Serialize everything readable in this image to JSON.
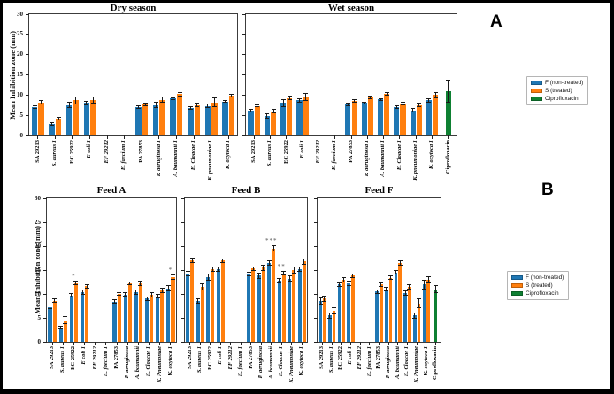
{
  "figure": {
    "panel_a_label": "A",
    "panel_b_label": "B",
    "ylabel": "Mean Inhibition zone (mm)",
    "colors": {
      "f_bar": "#1f77b4",
      "s_bar": "#ff7f0e",
      "cipro_bar": "#0e8032",
      "error_bar": "#1a1a1a"
    },
    "legend": {
      "items": [
        {
          "label": "F (non-treated)",
          "color": "#1f77b4"
        },
        {
          "label": "S (treated)",
          "color": "#ff7f0e"
        },
        {
          "label": "Ciprofloxacin",
          "color": "#0e8032"
        }
      ]
    }
  },
  "chart_data": [
    {
      "type": "bar",
      "panel": "A",
      "title": "Dry season",
      "ylabel": "Mean Inhibition zone (mm)",
      "ylim": [
        0,
        30
      ],
      "yticks": [
        0,
        5,
        10,
        15,
        20,
        25,
        30
      ],
      "show_ytick_labels": true,
      "grid": false,
      "categories": [
        {
          "label": "SA 29213",
          "italic": false
        },
        {
          "label": "S. aureus 1",
          "italic": true
        },
        {
          "label": "EC 25922",
          "italic": false
        },
        {
          "label": "E coli 1",
          "italic": true
        },
        {
          "label": "EF 29212",
          "italic": true
        },
        {
          "label": "E. faecium 1",
          "italic": true
        },
        {
          "label": "PA 27853",
          "italic": false
        },
        {
          "label": "P. aeruginosa 1",
          "italic": true
        },
        {
          "label": "A. baumannii 1",
          "italic": true
        },
        {
          "label": "E. Cloacae 1",
          "italic": true
        },
        {
          "label": "K. pneumoniae 1",
          "italic": true
        },
        {
          "label": "K. oxytoca 1",
          "italic": true
        }
      ],
      "series": [
        {
          "name": "F (non-treated)",
          "color": "#1f77b4",
          "values": [
            7.0,
            2.8,
            7.5,
            8.0,
            0,
            0,
            7.0,
            7.5,
            9.1,
            6.8,
            7.3,
            8.4
          ],
          "errors": [
            0.4,
            0.4,
            0.8,
            0.6,
            0,
            0,
            0.5,
            0.8,
            0.4,
            0.5,
            0.5,
            0.4
          ]
        },
        {
          "name": "S (treated)",
          "color": "#ff7f0e",
          "values": [
            8.2,
            4.2,
            8.7,
            8.8,
            0,
            0,
            7.6,
            8.8,
            10.2,
            7.5,
            8.2,
            9.9
          ],
          "errors": [
            0.5,
            0.4,
            1.0,
            0.9,
            0,
            0,
            0.4,
            0.8,
            0.5,
            0.5,
            1.2,
            0.5
          ]
        }
      ],
      "annotations": []
    },
    {
      "type": "bar",
      "panel": "A",
      "title": "Wet season",
      "ylabel": null,
      "ylim": [
        0,
        30
      ],
      "yticks": [
        0,
        5,
        10,
        15,
        20,
        25,
        30
      ],
      "show_ytick_labels": false,
      "grid": false,
      "categories": [
        {
          "label": "SA 29213",
          "italic": false
        },
        {
          "label": "S. aureus 1",
          "italic": true
        },
        {
          "label": "EC 25922",
          "italic": false
        },
        {
          "label": "E coli 1",
          "italic": true
        },
        {
          "label": "EF 29212",
          "italic": true
        },
        {
          "label": "E. faecium 1",
          "italic": true
        },
        {
          "label": "PA 27853",
          "italic": false
        },
        {
          "label": "P. aeruginosa 1",
          "italic": true
        },
        {
          "label": "A. baumannii 1",
          "italic": true
        },
        {
          "label": "E. Cloacae 1",
          "italic": true
        },
        {
          "label": "K. pneumoniae 1",
          "italic": true
        },
        {
          "label": "K. oxytoca 1",
          "italic": true
        },
        {
          "label": "Ciprofloxacin",
          "italic": false
        }
      ],
      "series": [
        {
          "name": "F (non-treated)",
          "color": "#1f77b4",
          "values": [
            6.2,
            4.8,
            8.0,
            8.7,
            0,
            0,
            7.6,
            8.0,
            8.9,
            7.0,
            6.2,
            8.7,
            null
          ],
          "errors": [
            0.4,
            0.7,
            1.0,
            0.5,
            0,
            0,
            0.4,
            0.4,
            0.4,
            0.5,
            0.6,
            0.5,
            null
          ]
        },
        {
          "name": "S (treated)",
          "color": "#ff7f0e",
          "values": [
            7.3,
            6.0,
            9.3,
            9.6,
            0,
            0,
            8.5,
            9.4,
            10.3,
            7.9,
            7.5,
            10.0,
            null
          ],
          "errors": [
            0.4,
            0.5,
            0.6,
            1.0,
            0,
            0,
            0.5,
            0.5,
            0.5,
            0.5,
            0.5,
            0.7,
            null
          ]
        },
        {
          "name": "Ciprofloxacin",
          "color": "#0e8032",
          "values": [
            null,
            null,
            null,
            null,
            null,
            null,
            null,
            null,
            null,
            null,
            null,
            null,
            10.9
          ],
          "errors": [
            null,
            null,
            null,
            null,
            null,
            null,
            null,
            null,
            null,
            null,
            null,
            null,
            2.8
          ]
        }
      ],
      "annotations": []
    },
    {
      "type": "bar",
      "panel": "B",
      "title": "Feed A",
      "ylabel": "Mean Inhibition zone (mm)",
      "ylim": [
        0,
        30
      ],
      "yticks": [
        0,
        5,
        10,
        15,
        20,
        25,
        30
      ],
      "show_ytick_labels": true,
      "grid": false,
      "categories": [
        {
          "label": "SA 29213",
          "italic": false
        },
        {
          "label": "S. aureus 1",
          "italic": true
        },
        {
          "label": "EC 25922",
          "italic": false
        },
        {
          "label": "E coli 1",
          "italic": true
        },
        {
          "label": "EF 29212",
          "italic": true
        },
        {
          "label": "E. faecium 1",
          "italic": true
        },
        {
          "label": "PA 27853",
          "italic": false
        },
        {
          "label": "P. aeruginosa",
          "italic": true
        },
        {
          "label": "A. baumannii",
          "italic": true
        },
        {
          "label": "E. Cloacae 1",
          "italic": true
        },
        {
          "label": "K. Pneumoniae",
          "italic": true
        },
        {
          "label": "K. oxytoca 1",
          "italic": true
        }
      ],
      "series": [
        {
          "name": "F (non-treated)",
          "color": "#1f77b4",
          "values": [
            7.3,
            3.0,
            9.7,
            10.4,
            0,
            0,
            8.4,
            9.9,
            10.4,
            9.0,
            9.5,
            11.2
          ],
          "errors": [
            0.5,
            0.4,
            0.5,
            0.5,
            0,
            0,
            0.4,
            0.5,
            0.5,
            0.5,
            0.5,
            0.6
          ]
        },
        {
          "name": "S (treated)",
          "color": "#ff7f0e",
          "values": [
            8.6,
            4.5,
            12.3,
            11.6,
            0,
            0,
            10.0,
            12.2,
            12.2,
            9.8,
            10.7,
            13.5
          ],
          "errors": [
            0.4,
            0.8,
            0.5,
            0.4,
            0,
            0,
            0.4,
            0.4,
            0.5,
            0.5,
            0.6,
            0.5
          ]
        }
      ],
      "annotations": [
        {
          "category_index": 2,
          "text": "*"
        },
        {
          "category_index": 11,
          "text": "*"
        }
      ]
    },
    {
      "type": "bar",
      "panel": "B",
      "title": "Feed B",
      "ylabel": null,
      "ylim": [
        0,
        30
      ],
      "yticks": [
        0,
        5,
        10,
        15,
        20,
        25,
        30
      ],
      "show_ytick_labels": false,
      "grid": false,
      "categories": [
        {
          "label": "SA 29213",
          "italic": false
        },
        {
          "label": "S. aureus 1",
          "italic": true
        },
        {
          "label": "EC 25922",
          "italic": false
        },
        {
          "label": "E coli 1",
          "italic": true
        },
        {
          "label": "EF 29212",
          "italic": true
        },
        {
          "label": "E. faecium 1",
          "italic": true
        },
        {
          "label": "PA 27853",
          "italic": false
        },
        {
          "label": "P. aeruginosa",
          "italic": true
        },
        {
          "label": "A. baumannii",
          "italic": true
        },
        {
          "label": "E. Cloacae 1",
          "italic": true
        },
        {
          "label": "K. Pneumoniae",
          "italic": true
        },
        {
          "label": "K. oxytoca 1",
          "italic": true
        }
      ],
      "series": [
        {
          "name": "F (non-treated)",
          "color": "#1f77b4",
          "values": [
            14.3,
            8.5,
            13.5,
            15.2,
            0,
            0,
            14.2,
            13.8,
            16.5,
            12.8,
            13.2,
            15.2
          ],
          "errors": [
            0.6,
            0.5,
            0.8,
            0.5,
            0,
            0,
            0.5,
            0.6,
            0.5,
            0.5,
            0.6,
            0.6
          ]
        },
        {
          "name": "S (treated)",
          "color": "#ff7f0e",
          "values": [
            17.0,
            11.5,
            15.2,
            17.0,
            0,
            0,
            15.3,
            15.5,
            19.5,
            14.3,
            15.0,
            16.8
          ],
          "errors": [
            0.6,
            0.7,
            0.5,
            0.5,
            0,
            0,
            0.5,
            0.6,
            0.6,
            0.5,
            0.8,
            0.6
          ]
        }
      ],
      "annotations": [
        {
          "category_index": 8,
          "text": "***"
        },
        {
          "category_index": 9,
          "text": "**"
        }
      ]
    },
    {
      "type": "bar",
      "panel": "B",
      "title": "Feed F",
      "ylabel": null,
      "ylim": [
        0,
        30
      ],
      "yticks": [
        0,
        5,
        10,
        15,
        20,
        25,
        30
      ],
      "show_ytick_labels": false,
      "grid": false,
      "categories": [
        {
          "label": "SA 29213",
          "italic": false
        },
        {
          "label": "S. aureus 1",
          "italic": true
        },
        {
          "label": "EC 25922",
          "italic": false
        },
        {
          "label": "E coli 1",
          "italic": true
        },
        {
          "label": "EF 29212",
          "italic": true
        },
        {
          "label": "E. faecium 1",
          "italic": true
        },
        {
          "label": "PA 27853",
          "italic": false
        },
        {
          "label": "P. aeruginosa",
          "italic": true
        },
        {
          "label": "A. baumannii",
          "italic": true
        },
        {
          "label": "E. Cloacae 1",
          "italic": true
        },
        {
          "label": "K. Pneumoniae",
          "italic": true
        },
        {
          "label": "K. oxytoca 1",
          "italic": true
        },
        {
          "label": "Ciprofloxacin",
          "italic": false
        }
      ],
      "series": [
        {
          "name": "F (non-treated)",
          "color": "#1f77b4",
          "values": [
            8.5,
            5.5,
            12.0,
            12.2,
            0,
            0,
            10.5,
            11.0,
            14.5,
            10.2,
            5.5,
            12.0,
            null
          ],
          "errors": [
            0.7,
            0.6,
            0.5,
            0.5,
            0,
            0,
            0.5,
            0.5,
            0.5,
            0.5,
            0.6,
            1.0,
            null
          ]
        },
        {
          "name": "S (treated)",
          "color": "#ff7f0e",
          "values": [
            9.0,
            6.5,
            13.0,
            13.8,
            0,
            0,
            12.0,
            13.4,
            16.5,
            11.5,
            8.0,
            13.0,
            null
          ],
          "errors": [
            0.6,
            0.7,
            0.5,
            0.5,
            0,
            0,
            0.5,
            0.5,
            0.5,
            0.5,
            1.0,
            0.7,
            null
          ]
        },
        {
          "name": "Ciprofloxacin",
          "color": "#0e8032",
          "values": [
            null,
            null,
            null,
            null,
            null,
            null,
            null,
            null,
            null,
            null,
            null,
            null,
            11.0
          ],
          "errors": [
            null,
            null,
            null,
            null,
            null,
            null,
            null,
            null,
            null,
            null,
            null,
            null,
            0.8
          ]
        }
      ],
      "annotations": []
    }
  ]
}
